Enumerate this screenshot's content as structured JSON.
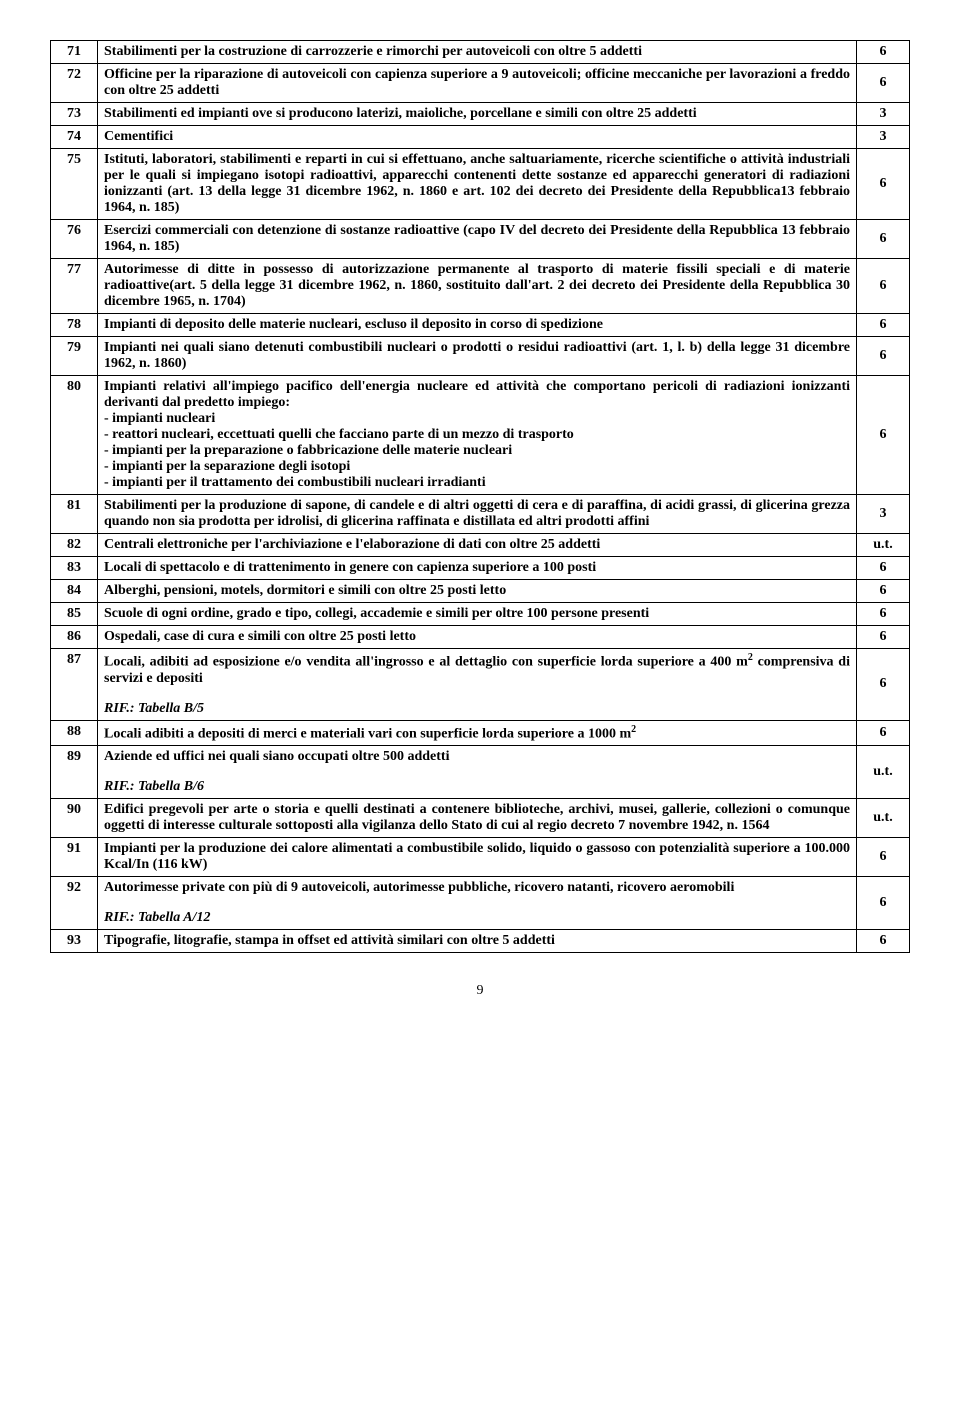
{
  "rows": [
    {
      "n": "71",
      "desc": "Stabilimenti per la costruzione di carrozzerie e rimorchi per autoveicoli con oltre 5 addetti",
      "val": "6",
      "rif": null
    },
    {
      "n": "72",
      "desc": "Officine per la riparazione di autoveicoli con capienza superiore a 9 autoveicoli; officine meccaniche per lavorazioni a freddo con oltre 25 addetti",
      "val": "6",
      "rif": null
    },
    {
      "n": "73",
      "desc": "Stabilimenti ed impianti ove si producono laterizi, maioliche, porcellane e simili con oltre 25 addetti",
      "val": "3",
      "rif": null
    },
    {
      "n": "74",
      "desc": "Cementifici",
      "val": "3",
      "rif": null
    },
    {
      "n": "75",
      "desc": "Istituti, laboratori, stabilimenti e reparti in cui si effettuano, anche saltuariamente, ricerche scientifiche o attività industriali per le quali si impiegano isotopi radioattivi, apparecchi contenenti dette sostanze ed apparecchi generatori di radiazioni ionizzanti (art. 13 della legge 31 dicembre 1962, n. 1860 e art. 102 dei decreto dei Presidente della Repubblica13 febbraio 1964, n. 185)",
      "val": "6",
      "rif": null
    },
    {
      "n": "76",
      "desc": "Esercizi commerciali con detenzione di sostanze radioattive (capo IV del decreto dei Presidente della Repubblica 13 febbraio 1964, n. 185)",
      "val": "6",
      "rif": null
    },
    {
      "n": "77",
      "desc": "Autorimesse di ditte in possesso di autorizzazione permanente al trasporto di materie fissili speciali e di materie radioattive(art. 5 della legge 31 dicembre 1962, n. 1860, sostituito dall'art. 2 dei decreto dei Presidente della Repubblica 30 dicembre 1965, n. 1704)",
      "val": "6",
      "rif": null
    },
    {
      "n": "78",
      "desc": "Impianti di deposito delle materie nucleari, escluso il deposito in corso di spedizione",
      "val": "6",
      "rif": null
    },
    {
      "n": "79",
      "desc": "Impianti nei quali siano detenuti combustibili nucleari o prodotti o residui radioattivi (art. 1, l. b) della legge 31 dicembre 1962, n. 1860)",
      "val": "6",
      "rif": null
    },
    {
      "n": "80",
      "desc": "Impianti relativi all'impiego pacifico dell'energia nucleare ed attività che comportano pericoli di radiazioni ionizzanti derivanti dal predetto impiego:\n- impianti nucleari\n- reattori nucleari, eccettuati quelli che facciano parte di un mezzo di trasporto\n- impianti per la preparazione o fabbricazione delle materie nucleari\n- impianti per la separazione degli isotopi\n- impianti per il trattamento dei combustibili nucleari irradianti",
      "val": "6",
      "rif": null
    },
    {
      "n": "81",
      "desc": "Stabilimenti per la produzione di sapone, di candele e di altri oggetti di cera e di paraffina, di acidi grassi, di glicerina grezza quando non sia prodotta per idrolisi, di glicerina raffinata e distillata ed altri prodotti affini",
      "val": "3",
      "rif": null
    },
    {
      "n": "82",
      "desc": "Centrali elettroniche per l'archiviazione e l'elaborazione di dati con oltre 25 addetti",
      "val": "u.t.",
      "rif": null
    },
    {
      "n": "83",
      "desc": "Locali di spettacolo e di trattenimento in genere con capienza superiore a 100 posti",
      "val": "6",
      "rif": null
    },
    {
      "n": "84",
      "desc": "Alberghi, pensioni, motels, dormitori e simili con oltre 25 posti letto",
      "val": "6",
      "rif": null
    },
    {
      "n": "85",
      "desc": "Scuole di ogni ordine, grado e tipo, collegi, accademie e simili per oltre 100 persone presenti",
      "val": "6",
      "rif": null
    },
    {
      "n": "86",
      "desc": "Ospedali, case di cura e simili con oltre 25 posti letto",
      "val": "6",
      "rif": null
    },
    {
      "n": "87",
      "desc": "Locali, adibiti ad esposizione e/o vendita all'ingrosso e al dettaglio con superficie lorda superiore a 400 m<sup>2</sup> comprensiva di servizi e depositi",
      "val": "6",
      "rif": "RIF.: Tabella B/5"
    },
    {
      "n": "88",
      "desc": "Locali adibiti a depositi di merci e materiali vari con superficie lorda superiore a 1000 m<sup>2</sup>",
      "val": "6",
      "rif": null
    },
    {
      "n": "89",
      "desc": "Aziende ed uffici nei quali siano occupati oltre 500 addetti",
      "val": "u.t.",
      "rif": "RIF.: Tabella B/6"
    },
    {
      "n": "90",
      "desc": "Edifici pregevoli per arte o storia e quelli destinati a contenere biblioteche, archivi, musei, gallerie, collezioni o comunque oggetti di interesse culturale sottoposti alla vigilanza dello Stato di cui al regio decreto 7 novembre 1942, n. 1564",
      "val": "u.t.",
      "rif": null
    },
    {
      "n": "91",
      "desc": "Impianti per la produzione dei calore alimentati a combustibile solido, liquido o gassoso con potenzialità superiore a 100.000 Kcal/In (116 kW)",
      "val": "6",
      "rif": null
    },
    {
      "n": "92",
      "desc": "Autorimesse private con più di 9 autoveicoli, autorimesse pubbliche, ricovero natanti, ricovero aeromobili",
      "val": "6",
      "rif": "RIF.: Tabella A/12"
    },
    {
      "n": "93",
      "desc": "Tipografie, litografie, stampa in offset ed attività similari con oltre 5 addetti",
      "val": "6",
      "rif": null
    }
  ],
  "pageNumber": "9"
}
